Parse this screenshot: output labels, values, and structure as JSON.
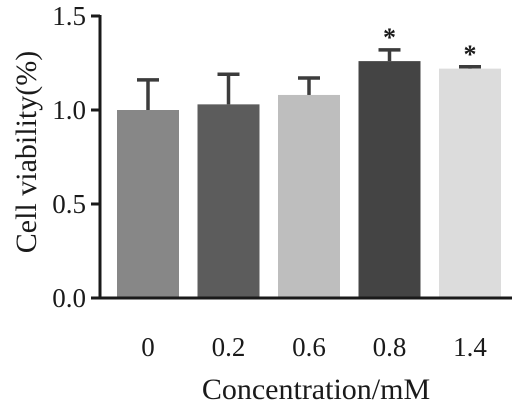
{
  "chart_data": {
    "type": "bar",
    "categories": [
      "0",
      "0.2",
      "0.6",
      "0.8",
      "1.4"
    ],
    "values": [
      1.0,
      1.03,
      1.08,
      1.26,
      1.22
    ],
    "errors": [
      0.16,
      0.16,
      0.09,
      0.06,
      0.01
    ],
    "significance": [
      "",
      "",
      "",
      "*",
      "*"
    ],
    "bar_colors": [
      "#878787",
      "#5c5c5c",
      "#bebebe",
      "#444444",
      "#dcdcdc"
    ],
    "error_color": "#3c3c3c",
    "xlabel": "Concentration/mM",
    "ylabel": "Cell viability(%)",
    "ylim": [
      0,
      1.5
    ],
    "yticks": [
      0.0,
      0.5,
      1.0,
      1.5
    ],
    "ytick_labels": [
      "0.0",
      "0.5",
      "1.0",
      "1.5"
    ],
    "grid": false,
    "legend": "none"
  }
}
